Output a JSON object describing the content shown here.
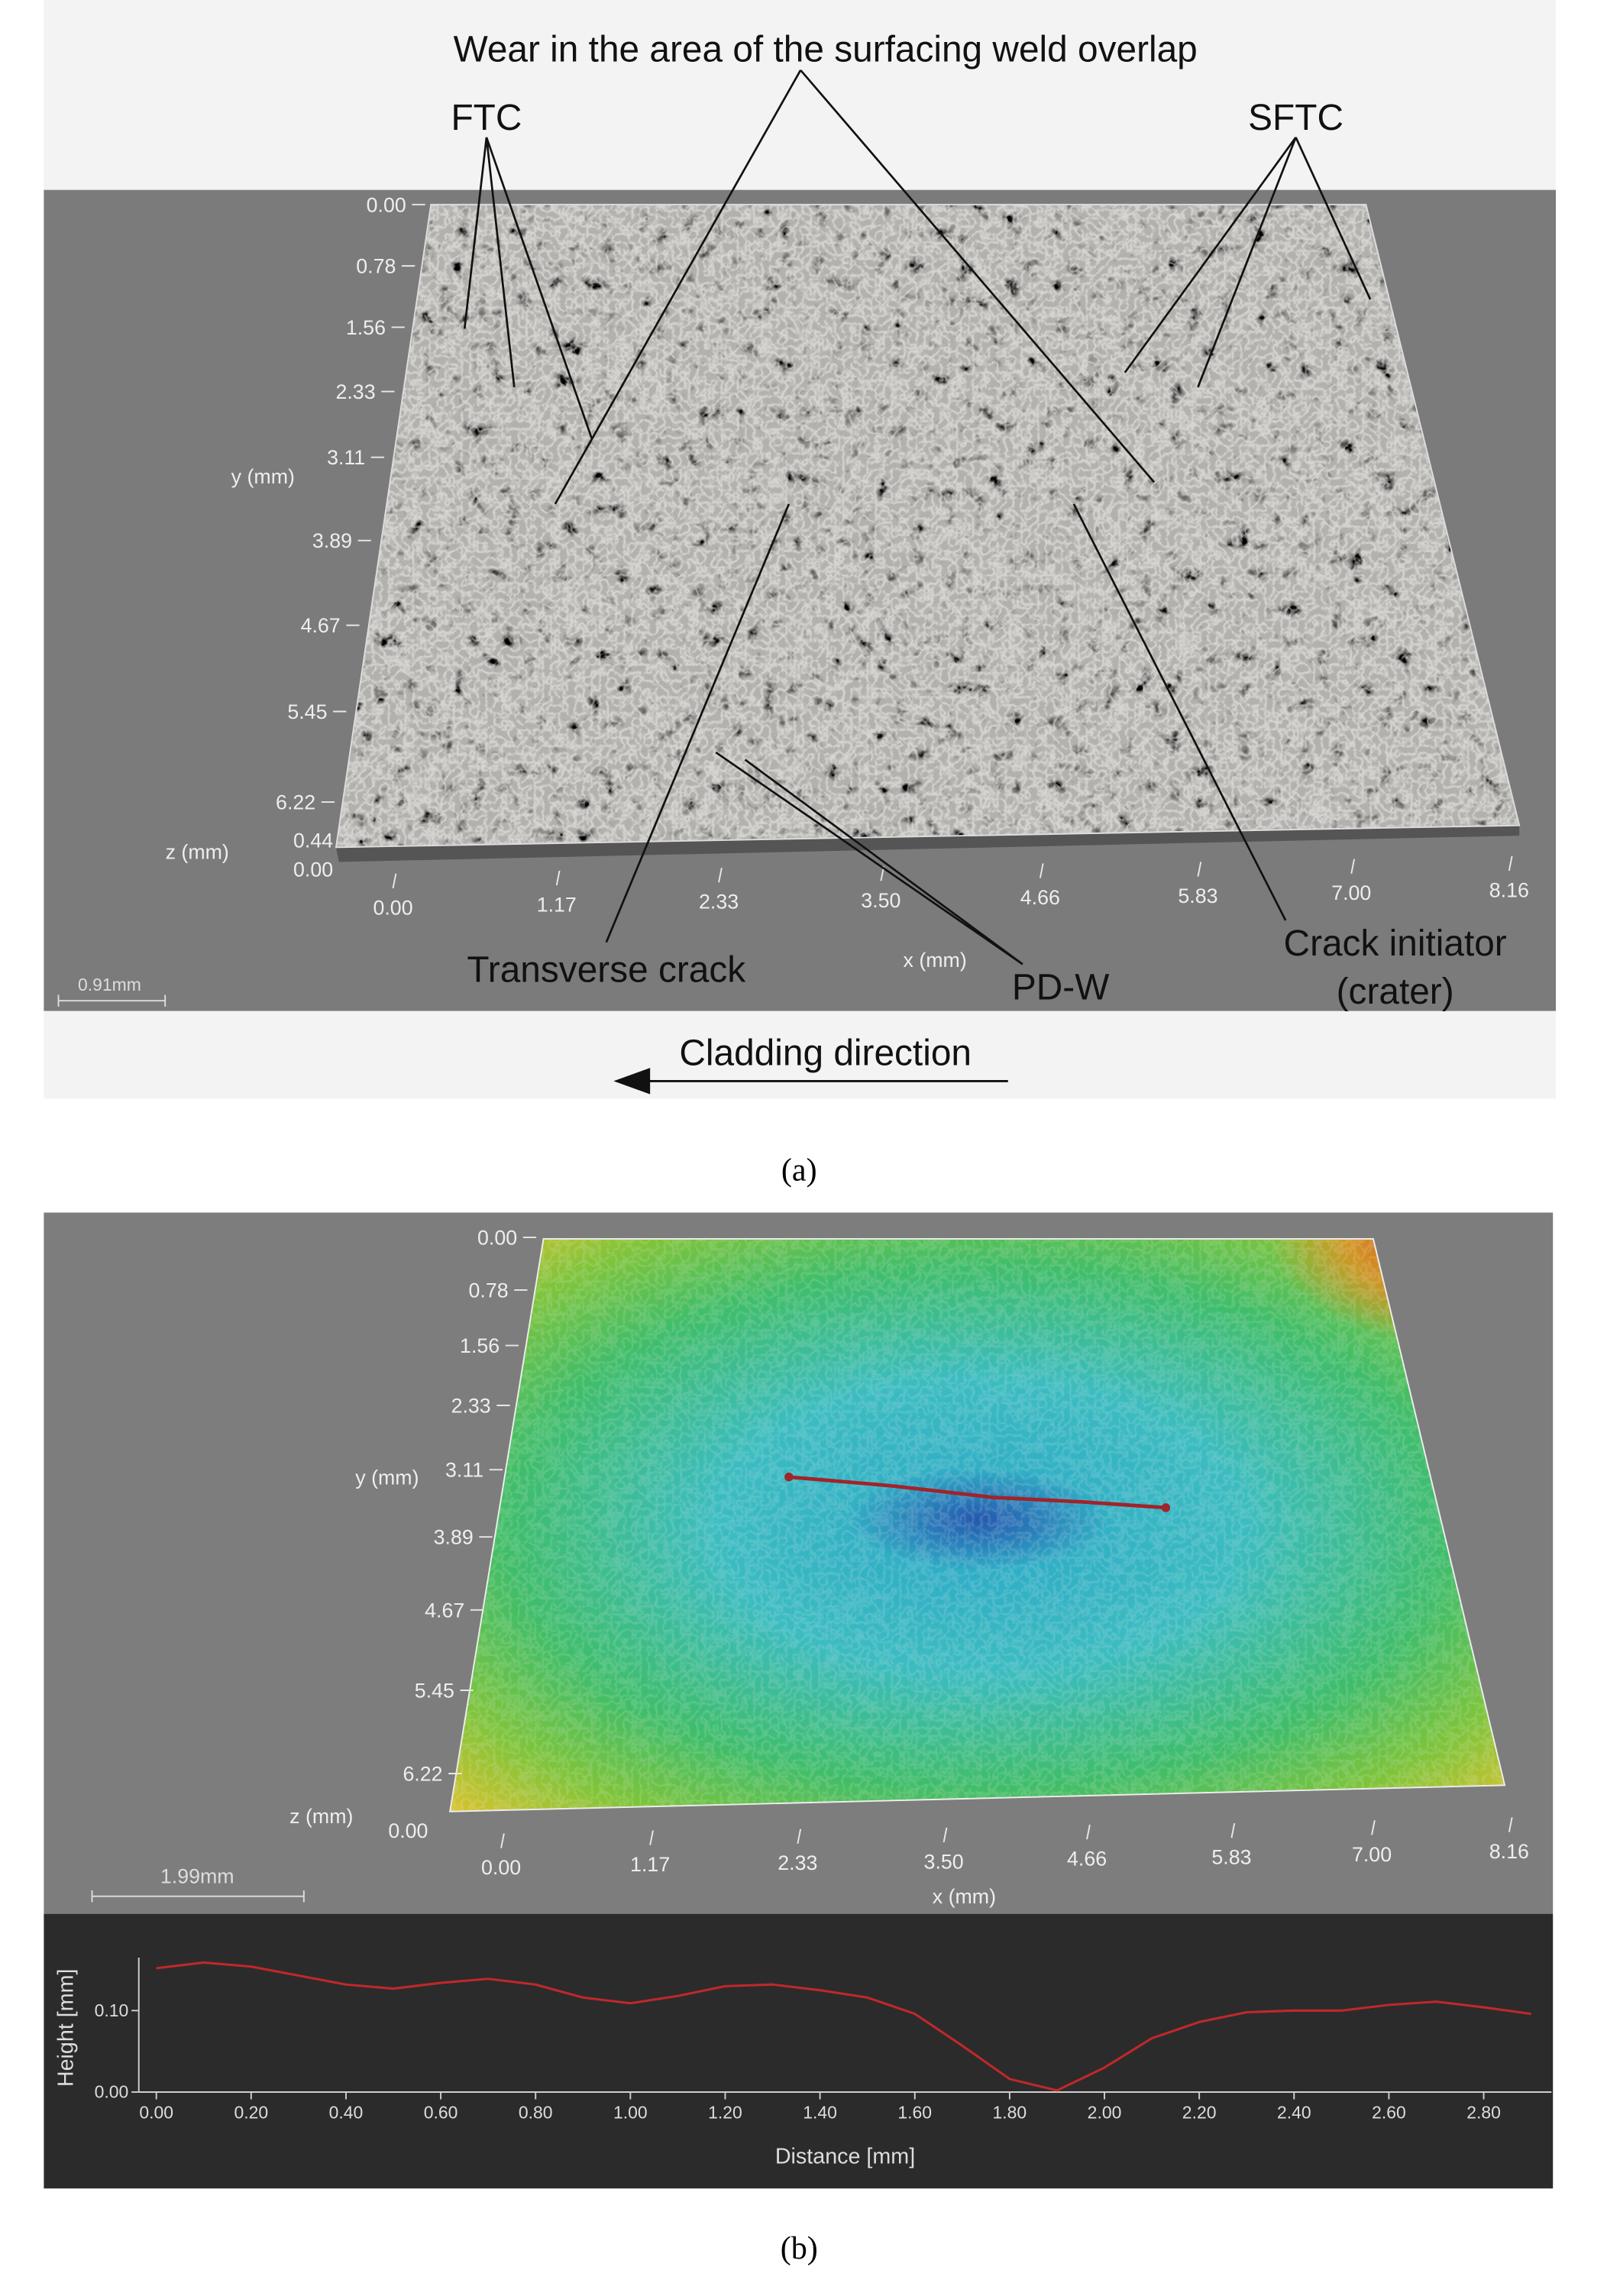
{
  "panel_a": {
    "annotations": [
      "Wear in the area of the surfacing weld overlap",
      "FTC",
      "SFTC",
      "Transverse crack",
      "PD-W",
      "Crack initiator",
      "(crater)"
    ],
    "y_axis_label": "y (mm)",
    "y_ticks": [
      "0.00",
      "0.78",
      "1.56",
      "2.33",
      "3.11",
      "3.89",
      "4.67",
      "5.45",
      "6.22"
    ],
    "z_axis_label": "z (mm)",
    "z_ticks": [
      "0.44",
      "0.00"
    ],
    "x_axis_label": "x (mm)",
    "x_ticks": [
      "0.00",
      "1.17",
      "2.33",
      "3.50",
      "4.66",
      "5.83",
      "7.00",
      "8.16"
    ],
    "scale_bar": "0.91mm",
    "direction": "Cladding  direction",
    "caption": "(a)"
  },
  "panel_b": {
    "y_axis_label": "y (mm)",
    "y_ticks": [
      "0.00",
      "0.78",
      "1.56",
      "2.33",
      "3.11",
      "3.89",
      "4.67",
      "5.45",
      "6.22"
    ],
    "z_axis_label": "z (mm)",
    "z_ticks": [
      "0.00"
    ],
    "x_axis_label": "x (mm)",
    "x_ticks": [
      "0.00",
      "1.17",
      "2.33",
      "3.50",
      "4.66",
      "5.83",
      "7.00",
      "8.16"
    ],
    "scale_bar": "1.99mm",
    "caption": "(b)"
  },
  "chart_data": {
    "type": "line",
    "x_label": "Distance [mm]",
    "y_label": "Height [mm]",
    "color": "#c0282a",
    "x": [
      0.0,
      0.1,
      0.2,
      0.3,
      0.4,
      0.5,
      0.6,
      0.7,
      0.8,
      0.9,
      1.0,
      1.1,
      1.2,
      1.3,
      1.4,
      1.5,
      1.6,
      1.7,
      1.8,
      1.9,
      2.0,
      2.1,
      2.2,
      2.3,
      2.4,
      2.5,
      2.6,
      2.7,
      2.8,
      2.9
    ],
    "values": [
      0.152,
      0.159,
      0.154,
      0.143,
      0.132,
      0.127,
      0.134,
      0.139,
      0.132,
      0.116,
      0.109,
      0.118,
      0.13,
      0.132,
      0.125,
      0.116,
      0.096,
      0.057,
      0.016,
      0.002,
      0.03,
      0.066,
      0.086,
      0.098,
      0.1,
      0.1,
      0.107,
      0.111,
      0.104,
      0.096
    ],
    "xlim": [
      -0.037,
      2.943
    ],
    "ylim": [
      0,
      0.165
    ],
    "xticks": [
      {
        "value": 0,
        "label": "0.00"
      },
      {
        "value": 0.2,
        "label": "0.20"
      },
      {
        "value": 0.4,
        "label": "0.40"
      },
      {
        "value": 0.6,
        "label": "0.60"
      },
      {
        "value": 0.8,
        "label": "0.80"
      },
      {
        "value": 1,
        "label": "1.00"
      },
      {
        "value": 1.2,
        "label": "1.20"
      },
      {
        "value": 1.4,
        "label": "1.40"
      },
      {
        "value": 1.6,
        "label": "1.60"
      },
      {
        "value": 1.8,
        "label": "1.80"
      },
      {
        "value": 2,
        "label": "2.00"
      },
      {
        "value": 2.2,
        "label": "2.20"
      },
      {
        "value": 2.4,
        "label": "2.40"
      },
      {
        "value": 2.6,
        "label": "2.60"
      },
      {
        "value": 2.8,
        "label": "2.80"
      }
    ],
    "yticks": [
      {
        "value": 0,
        "label": "0.00"
      },
      {
        "value": 0.1,
        "label": "0.10"
      }
    ]
  }
}
